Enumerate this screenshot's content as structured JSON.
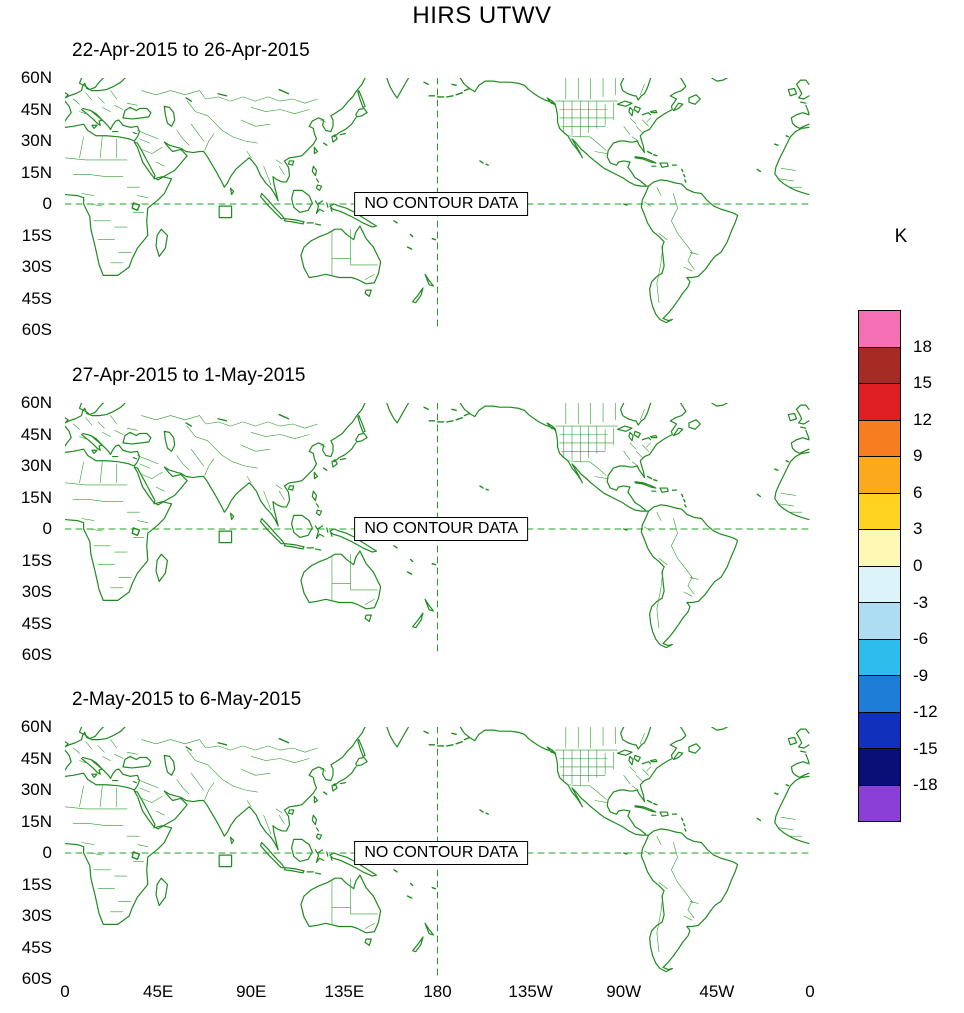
{
  "title": "HIRS UTWV",
  "panels": [
    {
      "subtitle": "22-Apr-2015 to 26-Apr-2015",
      "no_data_label": "NO CONTOUR DATA"
    },
    {
      "subtitle": "27-Apr-2015 to 1-May-2015",
      "no_data_label": "NO CONTOUR DATA"
    },
    {
      "subtitle": "2-May-2015 to 6-May-2015",
      "no_data_label": "NO CONTOUR DATA"
    }
  ],
  "y_axis_labels": [
    "60N",
    "45N",
    "30N",
    "15N",
    "0",
    "15S",
    "30S",
    "45S",
    "60S"
  ],
  "x_axis_labels": [
    "0",
    "45E",
    "90E",
    "135E",
    "180",
    "135W",
    "90W",
    "45W",
    "0"
  ],
  "colorbar": {
    "title": "K",
    "labels": [
      "18",
      "15",
      "12",
      "9",
      "6",
      "3",
      "0",
      "-3",
      "-6",
      "-9",
      "-12",
      "-15",
      "-18"
    ],
    "colors": [
      "#F46FB4",
      "#A62B25",
      "#E01F25",
      "#F57E20",
      "#FBAA1D",
      "#FFD320",
      "#FFF8B5",
      "#DDF3FA",
      "#ACDDF3",
      "#2EBCEC",
      "#1E7ED7",
      "#1130BC",
      "#0A0F78",
      "#8B3FD6"
    ]
  },
  "map": {
    "coastline_color": "#1f8b1f",
    "border_color": "#2f9e2f",
    "gridline_color": "#22a022"
  },
  "chart_data": {
    "type": "map-contour-panels",
    "title": "HIRS UTWV",
    "units": "K",
    "panels": [
      {
        "title": "22-Apr-2015 to 26-Apr-2015",
        "contour_data": "NO CONTOUR DATA"
      },
      {
        "title": "27-Apr-2015 to 1-May-2015",
        "contour_data": "NO CONTOUR DATA"
      },
      {
        "title": "2-May-2015 to 6-May-2015",
        "contour_data": "NO CONTOUR DATA"
      }
    ],
    "x_axis": {
      "ticks": [
        "0",
        "45E",
        "90E",
        "135E",
        "180",
        "135W",
        "90W",
        "45W",
        "0"
      ],
      "range_deg_east": [
        0,
        360
      ]
    },
    "y_axis": {
      "ticks": [
        "60N",
        "45N",
        "30N",
        "15N",
        "0",
        "15S",
        "30S",
        "45S",
        "60S"
      ],
      "range_deg_lat": [
        60,
        -60
      ]
    },
    "colorbar": {
      "title": "K",
      "levels": [
        18,
        15,
        12,
        9,
        6,
        3,
        0,
        -3,
        -6,
        -9,
        -12,
        -15,
        -18
      ],
      "n_boxes": 14,
      "position": "right"
    },
    "gridlines": {
      "equator_dashed": true,
      "dateline_dashed": true
    },
    "legend_position": "right",
    "grid": false
  }
}
